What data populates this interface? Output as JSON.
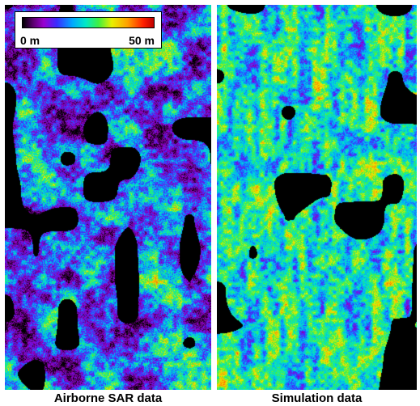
{
  "left_panel": {
    "caption": "Airborne SAR data"
  },
  "right_panel": {
    "caption": "Simulation data"
  },
  "colorbar": {
    "min_label": "0 m",
    "max_label": "50 m",
    "colors": [
      "#000000",
      "#5a006e",
      "#9a00d0",
      "#3a2cff",
      "#00a8ff",
      "#00e8c8",
      "#40f040",
      "#e8f000",
      "#ffa000",
      "#ff2000",
      "#c00000"
    ]
  }
}
